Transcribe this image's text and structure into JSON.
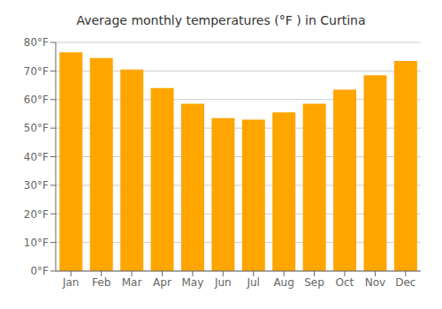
{
  "chart_data": {
    "type": "bar",
    "title": "Average monthly temperatures (°F ) in Curtina",
    "categories": [
      "Jan",
      "Feb",
      "Mar",
      "Apr",
      "May",
      "Jun",
      "Jul",
      "Aug",
      "Sep",
      "Oct",
      "Nov",
      "Dec"
    ],
    "values": [
      76.5,
      74.5,
      70.5,
      64.0,
      58.5,
      53.5,
      53.0,
      55.5,
      58.5,
      63.5,
      68.5,
      73.5
    ],
    "color": "#FFA500",
    "ylim": [
      0,
      80
    ],
    "yticks": [
      {
        "value": 0,
        "label": "0°F"
      },
      {
        "value": 10,
        "label": "10°F"
      },
      {
        "value": 20,
        "label": "20°F"
      },
      {
        "value": 30,
        "label": "30°F"
      },
      {
        "value": 40,
        "label": "40°F"
      },
      {
        "value": 50,
        "label": "50°F"
      },
      {
        "value": 60,
        "label": "60°F"
      },
      {
        "value": 70,
        "label": "70°F"
      },
      {
        "value": 80,
        "label": "80°F"
      }
    ],
    "grid": true
  }
}
